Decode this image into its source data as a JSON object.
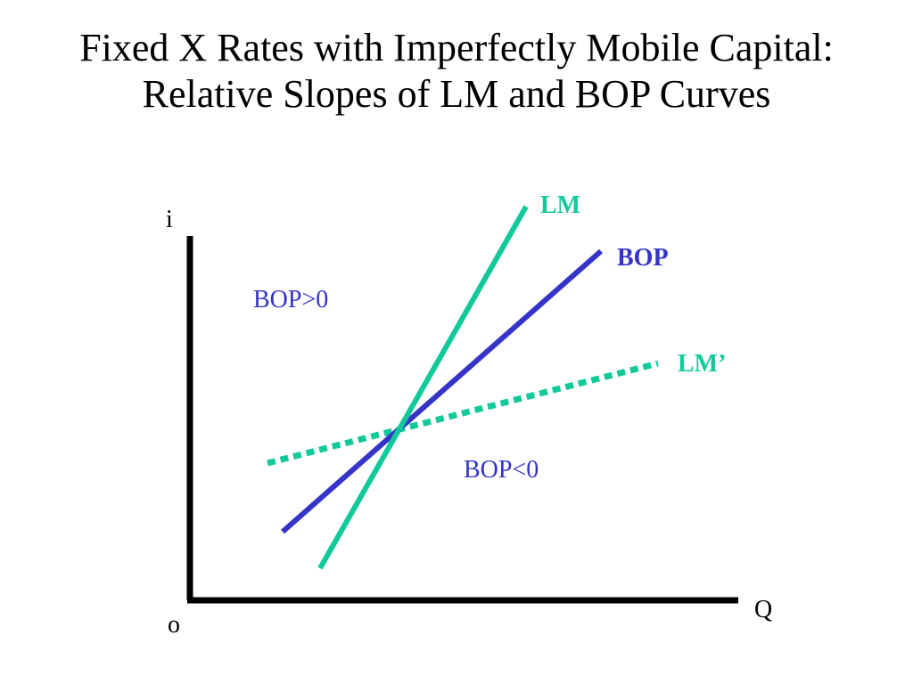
{
  "slide": {
    "title_line1": "Fixed X Rates with Imperfectly Mobile Capital:",
    "title_line2": "Relative Slopes of LM and BOP Curves"
  },
  "axes": {
    "y_label": "i",
    "x_label": "Q",
    "origin_label": "o"
  },
  "curves": {
    "lm": {
      "label": "LM",
      "color": "#12c99a",
      "style": "solid"
    },
    "bop": {
      "label": "BOP",
      "color": "#3434c8",
      "style": "solid"
    },
    "lm_prime": {
      "label": "LM’",
      "color": "#12c99a",
      "style": "dotted"
    }
  },
  "regions": {
    "above": "BOP>0",
    "below": "BOP<0"
  }
}
